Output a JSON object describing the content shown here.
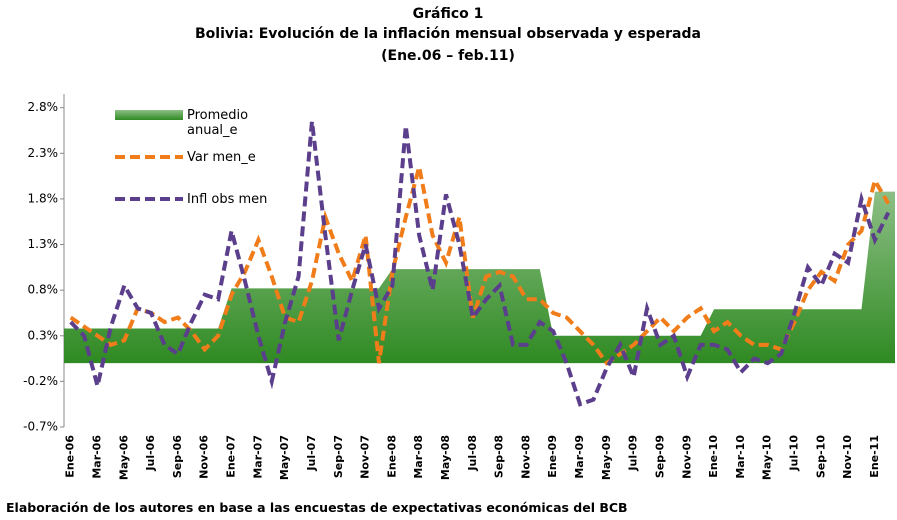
{
  "chart_data": {
    "type": "line",
    "title": "Gráfico 1",
    "subtitle": "Bolivia: Evolución de la inflación mensual observada y esperada",
    "period": "(Ene.06 – feb.11)",
    "source": "Elaboración de los autores en base a las encuestas de expectativas económicas del BCB",
    "categories": [
      "Ene-06",
      null,
      "Mar-06",
      null,
      "May-06",
      null,
      "Jul-06",
      null,
      "Sep-06",
      null,
      "Nov-06",
      null,
      "Ene-07",
      null,
      "Mar-07",
      null,
      "May-07",
      null,
      "Jul-07",
      null,
      "Sep-07",
      null,
      "Nov-07",
      null,
      "Ene-08",
      null,
      "Mar-08",
      null,
      "May-08",
      null,
      "Jul-08",
      null,
      "Sep-08",
      null,
      "Nov-08",
      null,
      "Ene-09",
      null,
      "Mar-09",
      null,
      "May-09",
      null,
      "Jul-09",
      null,
      "Sep-09",
      null,
      "Nov-09",
      null,
      "Ene-10",
      null,
      "Mar-10",
      null,
      "May-10",
      null,
      "Jul-10",
      null,
      "Sep-10",
      null,
      "Nov-10",
      null,
      "Ene-11",
      null
    ],
    "series": [
      {
        "name": "Promedio anual_e",
        "kind": "area",
        "color": "#2f8a22",
        "values": [
          0.38,
          0.38,
          0.38,
          0.38,
          0.38,
          0.38,
          0.38,
          0.38,
          0.38,
          0.38,
          0.38,
          0.38,
          0.82,
          0.82,
          0.82,
          0.82,
          0.82,
          0.82,
          0.82,
          0.82,
          0.82,
          0.82,
          0.82,
          0.82,
          1.03,
          1.03,
          1.03,
          1.03,
          1.03,
          1.03,
          1.03,
          1.03,
          1.03,
          1.03,
          1.03,
          1.03,
          0.3,
          0.3,
          0.3,
          0.3,
          0.3,
          0.3,
          0.3,
          0.3,
          0.3,
          0.3,
          0.3,
          0.3,
          0.59,
          0.59,
          0.59,
          0.59,
          0.59,
          0.59,
          0.59,
          0.59,
          0.59,
          0.59,
          0.59,
          0.59,
          1.88,
          1.88
        ]
      },
      {
        "name": "Var men_e",
        "kind": "line",
        "color": "#f07d1a",
        "values": [
          0.5,
          0.4,
          0.3,
          0.2,
          0.25,
          0.6,
          0.55,
          0.45,
          0.5,
          0.35,
          0.15,
          0.3,
          0.75,
          1.0,
          1.35,
          0.95,
          0.5,
          0.45,
          0.9,
          1.6,
          1.2,
          0.9,
          1.4,
          0.0,
          1.0,
          1.6,
          2.15,
          1.4,
          1.1,
          1.6,
          0.5,
          0.95,
          1.0,
          0.95,
          0.7,
          0.7,
          0.55,
          0.5,
          0.35,
          0.2,
          0.0,
          0.1,
          0.2,
          0.35,
          0.5,
          0.35,
          0.5,
          0.6,
          0.35,
          0.45,
          0.3,
          0.2,
          0.2,
          0.15,
          0.45,
          0.8,
          1.0,
          0.9,
          1.3,
          1.45,
          2.0,
          1.75
        ]
      },
      {
        "name": "Infl obs men",
        "kind": "line",
        "color": "#5b3f8c",
        "values": [
          0.45,
          0.3,
          -0.25,
          0.4,
          0.85,
          0.6,
          0.55,
          0.2,
          0.1,
          0.45,
          0.75,
          0.7,
          1.45,
          0.9,
          0.3,
          -0.2,
          0.45,
          0.95,
          2.65,
          1.4,
          0.25,
          0.8,
          1.3,
          0.6,
          0.85,
          2.6,
          1.4,
          0.8,
          1.85,
          1.3,
          0.5,
          0.7,
          0.85,
          0.2,
          0.2,
          0.45,
          0.35,
          0.0,
          -0.45,
          -0.4,
          -0.05,
          0.2,
          -0.15,
          0.6,
          0.2,
          0.3,
          -0.15,
          0.2,
          0.2,
          0.15,
          -0.1,
          0.05,
          0.0,
          0.1,
          0.55,
          1.05,
          0.85,
          1.2,
          1.1,
          1.8,
          1.35,
          1.65
        ]
      }
    ],
    "ylim": [
      -0.7,
      2.95
    ],
    "yticks": [
      {
        "value": -0.7,
        "label": "-0.7%"
      },
      {
        "value": -0.2,
        "label": "-0.2%"
      },
      {
        "value": 0.3,
        "label": "0.3%"
      },
      {
        "value": 0.8,
        "label": "0.8%"
      },
      {
        "value": 1.3,
        "label": "1.3%"
      },
      {
        "value": 1.8,
        "label": "1.8%"
      },
      {
        "value": 2.3,
        "label": "2.3%"
      },
      {
        "value": 2.8,
        "label": "2.8%"
      }
    ],
    "grid": false
  }
}
